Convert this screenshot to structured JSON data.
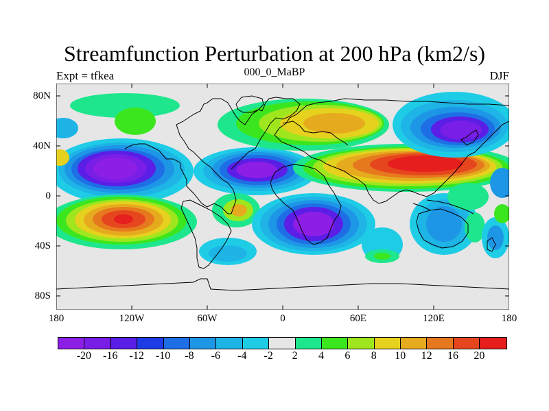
{
  "title": "Streamfunction Perturbation at 200 hPa (km2/s)",
  "left_string": "Expt = tfkea",
  "center_string": "000_0_MaBP",
  "right_string": "DJF",
  "lat_labels": [
    "80N",
    "40N",
    "0",
    "40S",
    "80S"
  ],
  "lon_labels": [
    "180",
    "120W",
    "60W",
    "0",
    "60E",
    "120E",
    "180"
  ],
  "colorbar": {
    "labels": [
      "-20",
      "-16",
      "-12",
      "-10",
      "-8",
      "-6",
      "-4",
      "-2",
      "2",
      "4",
      "6",
      "8",
      "10",
      "12",
      "16",
      "20"
    ],
    "colors": [
      "#8c1ee6",
      "#781ee6",
      "#5a1ee6",
      "#1e3ce6",
      "#1e6ee6",
      "#1e96e6",
      "#1eb4e6",
      "#1ecce6",
      "#e6e6e6",
      "#1ee68c",
      "#3ce61e",
      "#a0e61e",
      "#e6d21e",
      "#e6aa1e",
      "#e6781e",
      "#e6461e",
      "#e61e1e"
    ]
  },
  "colors": {
    "land_outline": "#000000",
    "background": "#e6e6e6"
  }
}
